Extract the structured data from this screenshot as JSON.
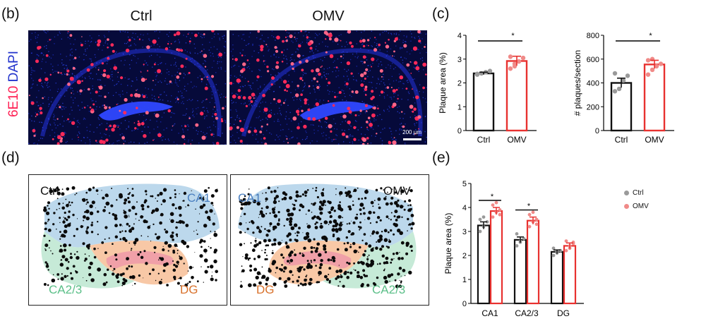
{
  "panels": {
    "b": {
      "letter": "(b)",
      "titles": [
        "Ctrl",
        "OMV"
      ],
      "stain_marker": "6E10",
      "stain_dapi": "DAPI",
      "scale_bar": "200 µm"
    },
    "c": {
      "letter": "(c)"
    },
    "d": {
      "letter": "(d)",
      "ctrl": {
        "title": "Ctrl",
        "ca1": "CA1",
        "ca23": "CA2/3",
        "dg": "DG"
      },
      "omv": {
        "title": "OMV",
        "ca1": "CA1",
        "ca23": "CA2/3",
        "dg": "DG"
      }
    },
    "e": {
      "letter": "(e)"
    }
  },
  "colors": {
    "ctrl": "#111111",
    "omv": "#e8312f",
    "omv_light": "#f08a88",
    "ctrl_dot": "#9a9a9a",
    "dapi": "#2233cc",
    "marker": "#ff2255",
    "ca1_region": "#bcd8ec",
    "ca23_region": "#c6ead7",
    "dg_region": "#f8c8a6",
    "dg_inner": "#f0a0a8"
  },
  "chart_data": [
    {
      "type": "bar",
      "title": "",
      "ylabel": "Plaque area (%)",
      "xlabel": "",
      "categories": [
        "Ctrl",
        "OMV"
      ],
      "values": [
        2.4,
        2.92
      ],
      "sem": [
        0.05,
        0.2
      ],
      "points": [
        [
          2.35,
          2.4,
          2.45,
          2.5,
          2.38
        ],
        [
          2.6,
          2.7,
          2.9,
          3.05,
          3.1,
          2.8
        ]
      ],
      "ylim": [
        0,
        4
      ],
      "yticks": [
        "0",
        "1",
        "2",
        "3",
        "4"
      ],
      "significance": "*"
    },
    {
      "type": "bar",
      "title": "",
      "ylabel": "# plaques/section",
      "xlabel": "",
      "categories": [
        "Ctrl",
        "OMV"
      ],
      "values": [
        400,
        555
      ],
      "sem": [
        40,
        35
      ],
      "points": [
        [
          330,
          350,
          420,
          460,
          480
        ],
        [
          470,
          510,
          540,
          560,
          590,
          600
        ]
      ],
      "ylim": [
        0,
        800
      ],
      "yticks": [
        "0",
        "200",
        "400",
        "600",
        "800"
      ],
      "significance": "*"
    },
    {
      "type": "bar",
      "title": "",
      "ylabel": "Plaque area (%)",
      "xlabel": "",
      "categories": [
        "CA1",
        "CA2/3",
        "DG"
      ],
      "series": [
        {
          "name": "Ctrl",
          "values": [
            3.25,
            2.65,
            2.15
          ],
          "sem": [
            0.15,
            0.12,
            0.08
          ],
          "points": [
            [
              3.0,
              3.2,
              3.4,
              3.5,
              3.6
            ],
            [
              2.4,
              2.6,
              2.7,
              2.9,
              2.55
            ],
            [
              2.0,
              2.1,
              2.2,
              2.3,
              2.15
            ]
          ]
        },
        {
          "name": "OMV",
          "values": [
            3.85,
            3.45,
            2.4
          ],
          "sem": [
            0.15,
            0.15,
            0.12
          ],
          "points": [
            [
              3.6,
              3.8,
              3.9,
              4.1,
              4.2,
              3.7
            ],
            [
              3.2,
              3.4,
              3.5,
              3.7,
              3.8,
              3.3
            ],
            [
              2.2,
              2.4,
              2.5,
              2.6,
              2.3,
              2.55
            ]
          ]
        }
      ],
      "ylim": [
        0,
        5
      ],
      "yticks": [
        "0",
        "1",
        "2",
        "3",
        "4",
        "5"
      ],
      "significance": [
        "*",
        "*",
        ""
      ],
      "legend": [
        "Ctrl",
        "OMV"
      ]
    }
  ]
}
